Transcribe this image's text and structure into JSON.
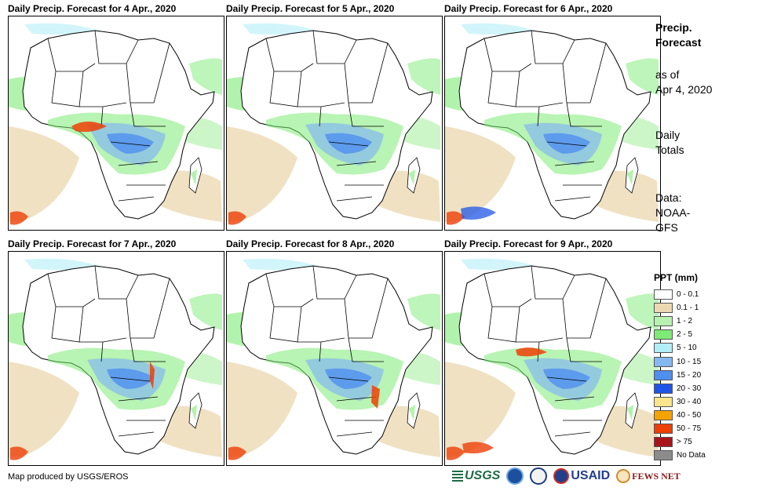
{
  "panels": [
    {
      "title": "Daily Precip. Forecast for 4 Apr., 2020"
    },
    {
      "title": "Daily Precip. Forecast for 5 Apr., 2020"
    },
    {
      "title": "Daily Precip. Forecast for 6 Apr., 2020"
    },
    {
      "title": "Daily Precip. Forecast for 7 Apr., 2020"
    },
    {
      "title": "Daily Precip. Forecast for 8 Apr., 2020"
    },
    {
      "title": "Daily Precip. Forecast for 9 Apr., 2020"
    }
  ],
  "sidebar": {
    "title_line1": "Precip.",
    "title_line2": "Forecast",
    "asof_line1": "as of",
    "asof_line2": "Apr 4, 2020",
    "daily_line1": "Daily",
    "daily_line2": "Totals",
    "source_line1": "Data:",
    "source_line2": "NOAA-",
    "source_line3": "GFS"
  },
  "legend": {
    "title": "PPT (mm)",
    "items": [
      {
        "label": "0 - 0.1",
        "color": "#ffffff"
      },
      {
        "label": "0.1 - 1",
        "color": "#ecd9b4"
      },
      {
        "label": "1 - 2",
        "color": "#b7f2b0"
      },
      {
        "label": "2 - 5",
        "color": "#7deb75"
      },
      {
        "label": "5 - 10",
        "color": "#b2eef8"
      },
      {
        "label": "10 - 15",
        "color": "#85b8f0"
      },
      {
        "label": "15 - 20",
        "color": "#4f8ff0"
      },
      {
        "label": "20 - 30",
        "color": "#1f55e6"
      },
      {
        "label": "30 - 40",
        "color": "#fae58c"
      },
      {
        "label": "40 - 50",
        "color": "#f5a300"
      },
      {
        "label": "50 - 75",
        "color": "#ee3f06"
      },
      {
        "label": "> 75",
        "color": "#a8141a"
      },
      {
        "label": "No Data",
        "color": "#8c8c8c"
      }
    ]
  },
  "footer": {
    "credit": "Map produced by USGS/EROS",
    "logos": {
      "usgs": "USGS",
      "usaid": "USAID",
      "fews": "FEWS NET"
    }
  }
}
